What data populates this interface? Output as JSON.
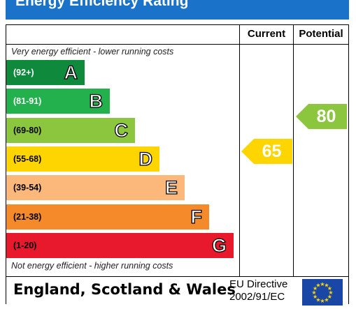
{
  "title": "Energy Efficiency Rating",
  "columns": {
    "current": "Current",
    "potential": "Potential"
  },
  "top_note": "Very energy efficient - lower running costs",
  "bottom_note": "Not energy efficient - higher running costs",
  "bands": [
    {
      "range": "(92+)",
      "letter": "A",
      "color": "#0f8a3c",
      "range_color": "#ffffff"
    },
    {
      "range": "(81-91)",
      "letter": "B",
      "color": "#23b14d",
      "range_color": "#ffffff"
    },
    {
      "range": "(69-80)",
      "letter": "C",
      "color": "#8cc63f",
      "range_color": "#000000"
    },
    {
      "range": "(55-68)",
      "letter": "D",
      "color": "#ffd500",
      "range_color": "#000000"
    },
    {
      "range": "(39-54)",
      "letter": "E",
      "color": "#fcb87a",
      "range_color": "#000000"
    },
    {
      "range": "(21-38)",
      "letter": "F",
      "color": "#f58a2a",
      "range_color": "#000000"
    },
    {
      "range": "(1-20)",
      "letter": "G",
      "color": "#e8192c",
      "range_color": "#000000"
    }
  ],
  "current_rating": {
    "value": "65",
    "color": "#ffd500"
  },
  "potential_rating": {
    "value": "80",
    "color": "#8cc63f"
  },
  "footer": {
    "region": "England, Scotland & Wales",
    "directive_line1": "EU Directive",
    "directive_line2": "2002/91/EC"
  }
}
